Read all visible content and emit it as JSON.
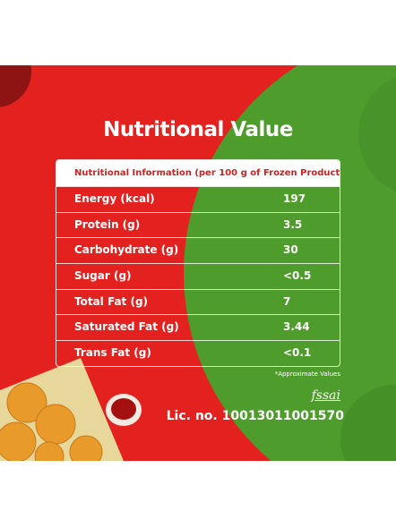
{
  "title": "Nutritional Value",
  "table": {
    "header": "Nutritional Information (per 100 g of Frozen Product)*",
    "rows": [
      [
        "Energy (kcal)",
        "197"
      ],
      [
        "Protein (g)",
        "3.5"
      ],
      [
        "Carbohydrate (g)",
        "30"
      ],
      [
        "Sugar (g)",
        "<0.5"
      ],
      [
        "Total Fat (g)",
        "7"
      ],
      [
        "Saturated Fat (g)",
        "3.44"
      ],
      [
        "Trans Fat (g)",
        "<0.1"
      ]
    ]
  },
  "footnote": "*Approximate Values",
  "logo": "fssai",
  "license": "Lic. no. 10013011001570"
}
